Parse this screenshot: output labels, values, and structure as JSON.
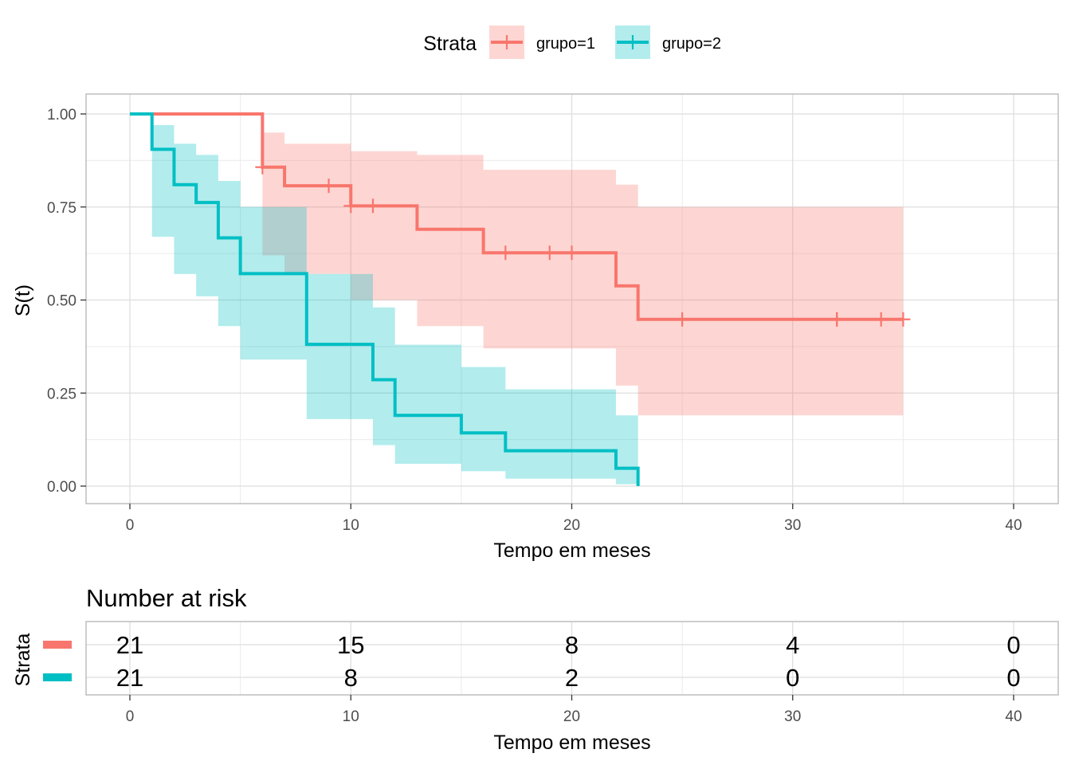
{
  "chart_data": {
    "type": "line",
    "subtype": "kaplan-meier step",
    "xlabel": "Tempo em meses",
    "ylabel": "S(t)",
    "xlim": [
      0,
      40
    ],
    "ylim": [
      0,
      1
    ],
    "x_ticks": [
      "0",
      "10",
      "20",
      "30",
      "40"
    ],
    "y_ticks": [
      "0.00",
      "0.25",
      "0.50",
      "0.75",
      "1.00"
    ],
    "grid": true,
    "legend": {
      "title": "Strata",
      "position": "top",
      "entries": [
        "grupo=1",
        "grupo=2"
      ]
    },
    "series": [
      {
        "name": "grupo=1",
        "color": "#F8766D",
        "steps": [
          [
            0,
            1.0
          ],
          [
            6,
            0.857
          ],
          [
            7,
            0.807
          ],
          [
            10,
            0.753
          ],
          [
            13,
            0.69
          ],
          [
            16,
            0.627
          ],
          [
            22,
            0.538
          ],
          [
            23,
            0.448
          ],
          [
            35,
            0.448
          ]
        ],
        "censor_times": [
          6,
          9,
          10,
          11,
          17,
          19,
          20,
          25,
          32,
          32,
          34,
          35
        ],
        "ci_lower": [
          1.0,
          0.62,
          0.57,
          0.5,
          0.43,
          0.37,
          0.27,
          0.19,
          0.19
        ],
        "ci_upper": [
          1.0,
          0.95,
          0.92,
          0.9,
          0.89,
          0.85,
          0.81,
          0.75,
          0.68
        ]
      },
      {
        "name": "grupo=2",
        "color": "#00BFC4",
        "steps": [
          [
            0,
            1.0
          ],
          [
            1,
            0.905
          ],
          [
            2,
            0.81
          ],
          [
            3,
            0.762
          ],
          [
            4,
            0.667
          ],
          [
            5,
            0.571
          ],
          [
            8,
            0.381
          ],
          [
            11,
            0.286
          ],
          [
            12,
            0.19
          ],
          [
            15,
            0.143
          ],
          [
            17,
            0.095
          ],
          [
            22,
            0.048
          ],
          [
            23,
            0.0
          ]
        ],
        "censor_times": [],
        "ci_lower": [
          1.0,
          0.67,
          0.57,
          0.51,
          0.43,
          0.34,
          0.18,
          0.11,
          0.06,
          0.04,
          0.02,
          0.005,
          0.0
        ],
        "ci_upper": [
          1.0,
          0.97,
          0.92,
          0.89,
          0.82,
          0.75,
          0.57,
          0.48,
          0.38,
          0.32,
          0.26,
          0.19,
          0.0
        ]
      }
    ],
    "risk_table": {
      "title": "Number at risk",
      "ylabel": "Strata",
      "xlabel": "Tempo em meses",
      "times": [
        0,
        10,
        20,
        30,
        40
      ],
      "rows": [
        {
          "name": "grupo=1",
          "color": "#F8766D",
          "values": [
            "21",
            "15",
            "8",
            "4",
            "0"
          ]
        },
        {
          "name": "grupo=2",
          "color": "#00BFC4",
          "values": [
            "21",
            "8",
            "2",
            "0",
            "0"
          ]
        }
      ]
    }
  }
}
